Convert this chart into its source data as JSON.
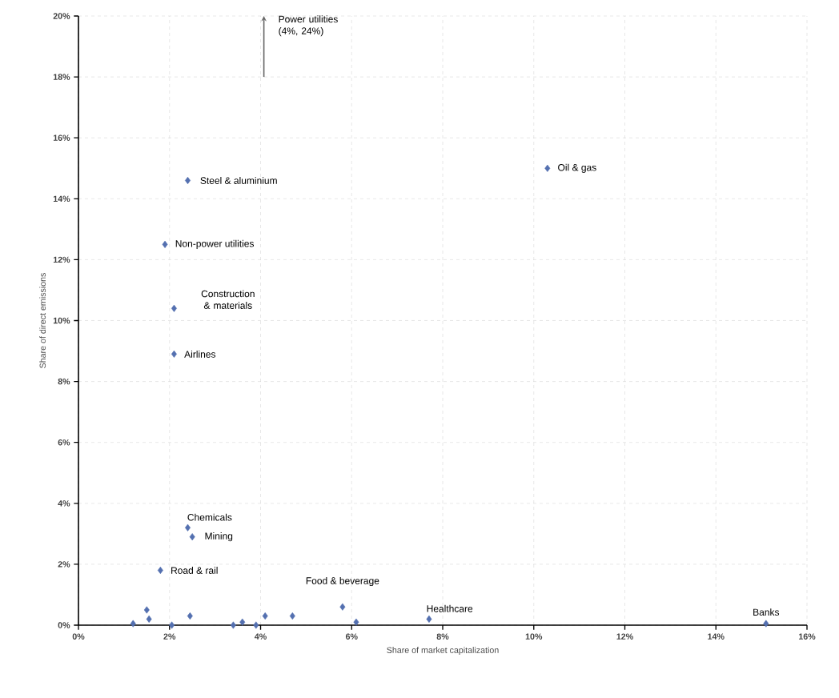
{
  "chart_data": {
    "type": "scatter",
    "xlabel": "Share of market capitalization",
    "ylabel": "Share of direct emissions",
    "xlim": [
      0,
      16
    ],
    "ylim": [
      0,
      20
    ],
    "xticks": [
      {
        "value": 0,
        "label": "0%"
      },
      {
        "value": 2,
        "label": "2%"
      },
      {
        "value": 4,
        "label": "4%"
      },
      {
        "value": 6,
        "label": "6%"
      },
      {
        "value": 8,
        "label": "8%"
      },
      {
        "value": 10,
        "label": "10%"
      },
      {
        "value": 12,
        "label": "12%"
      },
      {
        "value": 14,
        "label": "14%"
      },
      {
        "value": 16,
        "label": "16%"
      }
    ],
    "yticks": [
      {
        "value": 0,
        "label": "0%"
      },
      {
        "value": 2,
        "label": "2%"
      },
      {
        "value": 4,
        "label": "4%"
      },
      {
        "value": 6,
        "label": "6%"
      },
      {
        "value": 8,
        "label": "8%"
      },
      {
        "value": 10,
        "label": "10%"
      },
      {
        "value": 12,
        "label": "12%"
      },
      {
        "value": 14,
        "label": "14%"
      },
      {
        "value": 16,
        "label": "16%"
      },
      {
        "value": 18,
        "label": "18%"
      },
      {
        "value": 20,
        "label": "20%"
      }
    ],
    "grid": true,
    "marker": "diamond",
    "series": [
      {
        "name": "Oil & gas",
        "color": "#5470b0",
        "x": [
          10.3
        ],
        "values": [
          15.0
        ]
      },
      {
        "name": "Steel & aluminium",
        "color": "#5470b0",
        "x": [
          2.4
        ],
        "values": [
          14.6
        ]
      },
      {
        "name": "Non-power utilities",
        "color": "#5470b0",
        "x": [
          1.9
        ],
        "values": [
          12.5
        ]
      },
      {
        "name": "Construction & materials",
        "color": "#5470b0",
        "x": [
          2.1
        ],
        "values": [
          10.4
        ]
      },
      {
        "name": "Airlines",
        "color": "#5470b0",
        "x": [
          2.1
        ],
        "values": [
          8.9
        ]
      },
      {
        "name": "Chemicals",
        "color": "#5470b0",
        "x": [
          2.4
        ],
        "values": [
          3.2
        ]
      },
      {
        "name": "Mining",
        "color": "#5470b0",
        "x": [
          2.5
        ],
        "values": [
          2.9
        ]
      },
      {
        "name": "Road & rail",
        "color": "#5470b0",
        "x": [
          1.8
        ],
        "values": [
          1.8
        ]
      },
      {
        "name": "Food & beverage",
        "color": "#5470b0",
        "x": [
          5.8
        ],
        "values": [
          0.6
        ]
      },
      {
        "name": "Healthcare",
        "color": "#5470b0",
        "x": [
          7.7
        ],
        "values": [
          0.2
        ]
      },
      {
        "name": "Banks",
        "color": "#5470b0",
        "x": [
          15.1
        ],
        "values": [
          0.05
        ]
      },
      {
        "color": "#5470b0",
        "x": [
          1.2,
          1.5,
          1.55,
          2.05,
          2.45,
          3.4,
          3.6,
          3.9,
          4.1,
          4.7,
          6.1
        ],
        "values": [
          0.05,
          0.5,
          0.2,
          0.0,
          0.3,
          0.0,
          0.1,
          0.0,
          0.3,
          0.3,
          0.1
        ]
      }
    ],
    "annotations": [
      "Power utilities (4%, 24%)"
    ]
  }
}
